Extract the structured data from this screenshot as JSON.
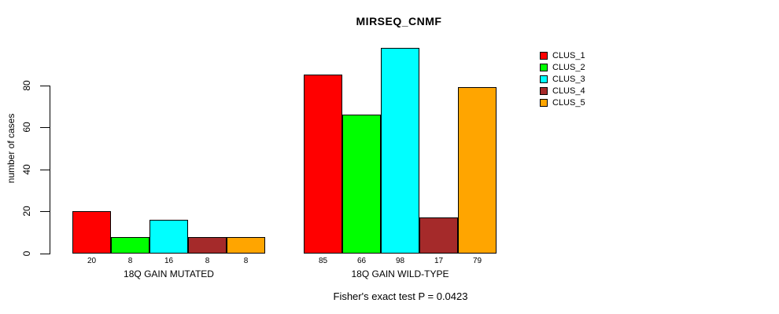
{
  "chart_data": {
    "type": "bar",
    "title": "MIRSEQ_CNMF",
    "ylabel": "number of cases",
    "xlabel": "",
    "yticks": [
      0,
      20,
      40,
      60,
      80
    ],
    "ylim": [
      0,
      99
    ],
    "grid": false,
    "legend_position": "right-outside",
    "series_names": [
      "CLUS_1",
      "CLUS_2",
      "CLUS_3",
      "CLUS_4",
      "CLUS_5"
    ],
    "colors": [
      "#FF0000",
      "#00FF00",
      "#00FFFF",
      "#A52A2A",
      "#FFA500"
    ],
    "groups": [
      {
        "label": "18Q GAIN MUTATED",
        "values": [
          20,
          8,
          16,
          8,
          8
        ]
      },
      {
        "label": "18Q GAIN WILD-TYPE",
        "values": [
          85,
          66,
          98,
          17,
          79
        ]
      }
    ],
    "bar_value_labels_shown": true,
    "annotation": "Fisher's exact test P = 0.0423"
  },
  "colors": {
    "background": "#FFFFFF",
    "axis": "#000000",
    "text": "#000000"
  }
}
